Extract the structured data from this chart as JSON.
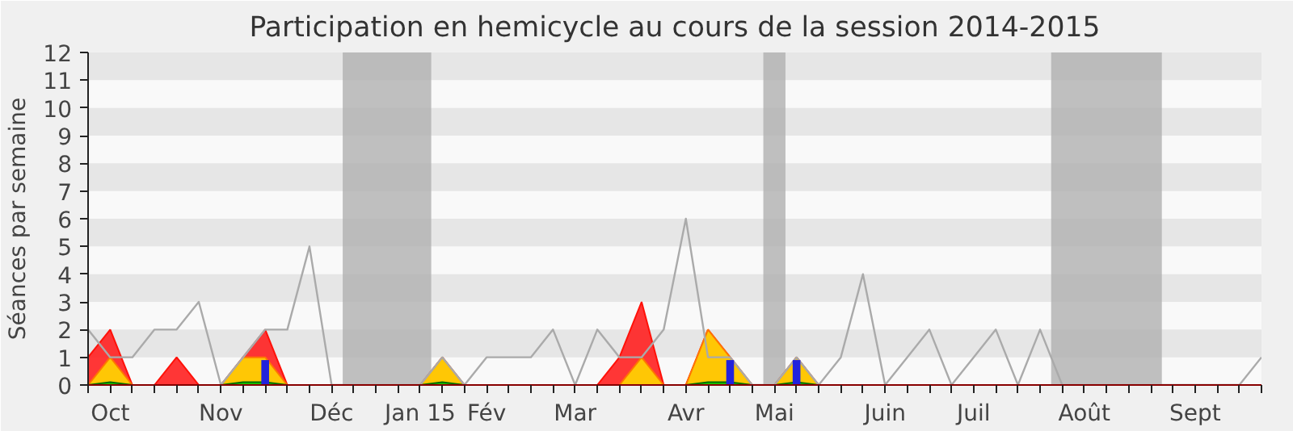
{
  "chart_data": {
    "type": "area",
    "title": "Participation en hemicycle au cours de la session 2014-2015",
    "ylabel": "Séances par semaine",
    "categories": [
      null,
      "Oct",
      null,
      null,
      null,
      null,
      "Nov",
      null,
      null,
      null,
      null,
      "Déc",
      null,
      null,
      null,
      "Jan 15",
      null,
      null,
      "Fév",
      null,
      null,
      null,
      "Mar",
      null,
      null,
      null,
      null,
      "Avr",
      null,
      null,
      null,
      "Mai",
      null,
      null,
      null,
      null,
      "Juin",
      null,
      null,
      null,
      "Juil",
      null,
      null,
      null,
      null,
      "Août",
      null,
      null,
      null,
      null,
      "Sept",
      null,
      null,
      null
    ],
    "series": [
      {
        "color": "#ff2020",
        "values": [
          1,
          2,
          0,
          0,
          1,
          0,
          0,
          1,
          2,
          0,
          0,
          0,
          0,
          0,
          0,
          0,
          1,
          0,
          0,
          0,
          0,
          0,
          0,
          0,
          1,
          3,
          0,
          0,
          2,
          1,
          0,
          0,
          1,
          0,
          0,
          0,
          0,
          0,
          0,
          0,
          0,
          0,
          0,
          0,
          0,
          0,
          0,
          0,
          0,
          0,
          0,
          0,
          0,
          0
        ]
      },
      {
        "color": "#ffd700",
        "values": [
          0,
          1,
          0,
          0,
          0,
          0,
          0,
          1,
          1,
          0,
          0,
          0,
          0,
          0,
          0,
          0,
          1,
          0,
          0,
          0,
          0,
          0,
          0,
          0,
          0,
          1,
          0,
          0,
          2,
          1,
          0,
          0,
          1,
          0,
          0,
          0,
          0,
          0,
          0,
          0,
          0,
          0,
          0,
          0,
          0,
          0,
          0,
          0,
          0,
          0,
          0,
          0,
          0,
          0
        ]
      },
      {
        "color": "#00cc00",
        "values": [
          0,
          0.1,
          0,
          0,
          0,
          0,
          0,
          0.1,
          0.1,
          0,
          0,
          0,
          0,
          0,
          0,
          0,
          0.1,
          0,
          0,
          0,
          0,
          0,
          0,
          0,
          0,
          0,
          0,
          0,
          0.1,
          0.1,
          0,
          0,
          0.1,
          0,
          0,
          0,
          0,
          0,
          0,
          0,
          0,
          0,
          0,
          0,
          0,
          0,
          0,
          0,
          0,
          0,
          0,
          0,
          0,
          0
        ]
      },
      {
        "type": "line",
        "color": "#aaaaaa",
        "values": [
          2,
          1,
          1,
          2,
          2,
          3,
          0,
          1,
          2,
          2,
          5,
          0,
          0,
          0,
          0,
          0,
          1,
          0,
          1,
          1,
          1,
          2,
          0,
          2,
          1,
          1,
          2,
          6,
          1,
          1,
          0,
          0,
          1,
          0,
          1,
          4,
          0,
          1,
          2,
          0,
          1,
          2,
          0,
          2,
          0,
          0,
          0,
          0,
          0,
          0,
          0,
          0,
          0,
          1
        ]
      },
      {
        "type": "bar",
        "color": "#2222dd",
        "values": [
          null,
          null,
          null,
          null,
          null,
          null,
          null,
          null,
          0.9,
          null,
          null,
          null,
          null,
          null,
          null,
          null,
          null,
          null,
          null,
          null,
          null,
          null,
          null,
          null,
          null,
          null,
          null,
          null,
          null,
          0.9,
          null,
          null,
          0.9,
          null,
          null,
          null,
          null,
          null,
          null,
          null,
          null,
          null,
          null,
          null,
          null,
          null,
          null,
          null,
          null,
          null,
          null,
          null,
          null,
          null
        ]
      }
    ],
    "ylim": [
      0,
      12
    ],
    "yticks": [
      0,
      1,
      2,
      3,
      4,
      5,
      6,
      7,
      8,
      9,
      10,
      11,
      12
    ],
    "grid": false
  }
}
